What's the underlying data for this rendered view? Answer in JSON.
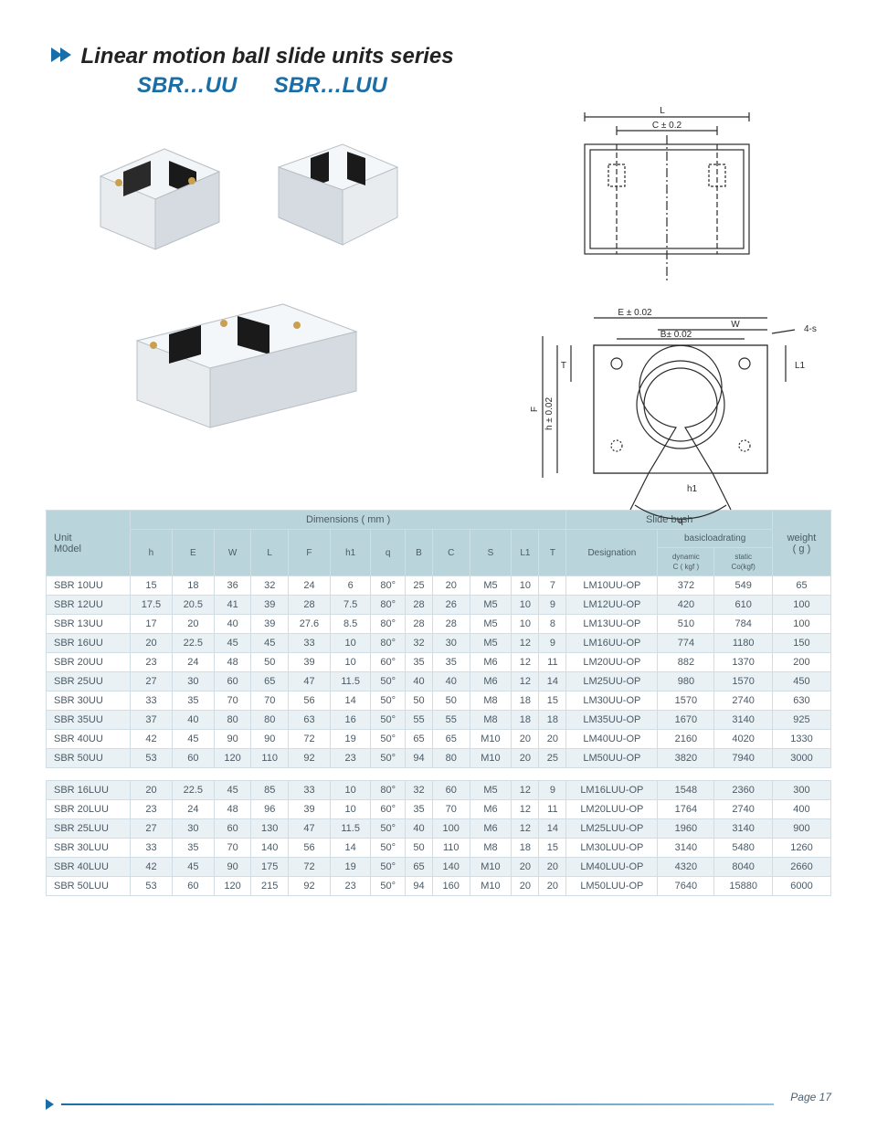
{
  "header": {
    "title": "Linear motion ball slide units series",
    "sub_a": "SBR…UU",
    "sub_b": "SBR…LUU"
  },
  "diagram_labels": {
    "top_L": "L",
    "top_C": "C ± 0.2",
    "E": "E ± 0.02",
    "W": "W",
    "B": "B± 0.02",
    "s4": "4-s",
    "T": "T",
    "L1": "L1",
    "h": "h ± 0.02",
    "F": "F",
    "h1": "h1",
    "q": "q"
  },
  "table": {
    "header_group": {
      "model": "Unit\nM0del",
      "dims": "Dimensions ( mm )",
      "slide": "Slide bush",
      "weight": "weight\n( g )"
    },
    "columns": [
      "h",
      "E",
      "W",
      "L",
      "F",
      "h1",
      "q",
      "B",
      "C",
      "S",
      "L1",
      "T"
    ],
    "slide_cols": {
      "designation": "Designation",
      "basic": "basicloadrating",
      "dyn": "dynamic\nC ( kgf )",
      "stat": "static\nCo(kgf)"
    },
    "colors": {
      "header_bg": "#b9d4da",
      "row_even_bg": "#e9f1f4",
      "row_odd_bg": "#ffffff",
      "border": "#d0dde4",
      "text": "#4a5a66"
    },
    "rows_a": [
      {
        "m": "SBR 10UU",
        "v": [
          "15",
          "18",
          "36",
          "32",
          "24",
          "6",
          "80°",
          "25",
          "20",
          "M5",
          "10",
          "7"
        ],
        "d": "LM10UU-OP",
        "dy": "372",
        "st": "549",
        "w": "65"
      },
      {
        "m": "SBR 12UU",
        "v": [
          "17.5",
          "20.5",
          "41",
          "39",
          "28",
          "7.5",
          "80°",
          "28",
          "26",
          "M5",
          "10",
          "9"
        ],
        "d": "LM12UU-OP",
        "dy": "420",
        "st": "610",
        "w": "100"
      },
      {
        "m": "SBR 13UU",
        "v": [
          "17",
          "20",
          "40",
          "39",
          "27.6",
          "8.5",
          "80°",
          "28",
          "28",
          "M5",
          "10",
          "8"
        ],
        "d": "LM13UU-OP",
        "dy": "510",
        "st": "784",
        "w": "100"
      },
      {
        "m": "SBR 16UU",
        "v": [
          "20",
          "22.5",
          "45",
          "45",
          "33",
          "10",
          "80°",
          "32",
          "30",
          "M5",
          "12",
          "9"
        ],
        "d": "LM16UU-OP",
        "dy": "774",
        "st": "1180",
        "w": "150"
      },
      {
        "m": "SBR 20UU",
        "v": [
          "23",
          "24",
          "48",
          "50",
          "39",
          "10",
          "60°",
          "35",
          "35",
          "M6",
          "12",
          "11"
        ],
        "d": "LM20UU-OP",
        "dy": "882",
        "st": "1370",
        "w": "200"
      },
      {
        "m": "SBR 25UU",
        "v": [
          "27",
          "30",
          "60",
          "65",
          "47",
          "11.5",
          "50°",
          "40",
          "40",
          "M6",
          "12",
          "14"
        ],
        "d": "LM25UU-OP",
        "dy": "980",
        "st": "1570",
        "w": "450"
      },
      {
        "m": "SBR 30UU",
        "v": [
          "33",
          "35",
          "70",
          "70",
          "56",
          "14",
          "50°",
          "50",
          "50",
          "M8",
          "18",
          "15"
        ],
        "d": "LM30UU-OP",
        "dy": "1570",
        "st": "2740",
        "w": "630"
      },
      {
        "m": "SBR 35UU",
        "v": [
          "37",
          "40",
          "80",
          "80",
          "63",
          "16",
          "50°",
          "55",
          "55",
          "M8",
          "18",
          "18"
        ],
        "d": "LM35UU-OP",
        "dy": "1670",
        "st": "3140",
        "w": "925"
      },
      {
        "m": "SBR 40UU",
        "v": [
          "42",
          "45",
          "90",
          "90",
          "72",
          "19",
          "50°",
          "65",
          "65",
          "M10",
          "20",
          "20"
        ],
        "d": "LM40UU-OP",
        "dy": "2160",
        "st": "4020",
        "w": "1330"
      },
      {
        "m": "SBR 50UU",
        "v": [
          "53",
          "60",
          "120",
          "110",
          "92",
          "23",
          "50°",
          "94",
          "80",
          "M10",
          "20",
          "25"
        ],
        "d": "LM50UU-OP",
        "dy": "3820",
        "st": "7940",
        "w": "3000"
      }
    ],
    "rows_b": [
      {
        "m": "SBR 16LUU",
        "v": [
          "20",
          "22.5",
          "45",
          "85",
          "33",
          "10",
          "80°",
          "32",
          "60",
          "M5",
          "12",
          "9"
        ],
        "d": "LM16LUU-OP",
        "dy": "1548",
        "st": "2360",
        "w": "300"
      },
      {
        "m": "SBR 20LUU",
        "v": [
          "23",
          "24",
          "48",
          "96",
          "39",
          "10",
          "60°",
          "35",
          "70",
          "M6",
          "12",
          "11"
        ],
        "d": "LM20LUU-OP",
        "dy": "1764",
        "st": "2740",
        "w": "400"
      },
      {
        "m": "SBR 25LUU",
        "v": [
          "27",
          "30",
          "60",
          "130",
          "47",
          "11.5",
          "50°",
          "40",
          "100",
          "M6",
          "12",
          "14"
        ],
        "d": "LM25LUU-OP",
        "dy": "1960",
        "st": "3140",
        "w": "900"
      },
      {
        "m": "SBR 30LUU",
        "v": [
          "33",
          "35",
          "70",
          "140",
          "56",
          "14",
          "50°",
          "50",
          "110",
          "M8",
          "18",
          "15"
        ],
        "d": "LM30LUU-OP",
        "dy": "3140",
        "st": "5480",
        "w": "1260"
      },
      {
        "m": "SBR 40LUU",
        "v": [
          "42",
          "45",
          "90",
          "175",
          "72",
          "19",
          "50°",
          "65",
          "140",
          "M10",
          "20",
          "20"
        ],
        "d": "LM40LUU-OP",
        "dy": "4320",
        "st": "8040",
        "w": "2660"
      },
      {
        "m": "SBR 50LUU",
        "v": [
          "53",
          "60",
          "120",
          "215",
          "92",
          "23",
          "50°",
          "94",
          "160",
          "M10",
          "20",
          "20"
        ],
        "d": "LM50LUU-OP",
        "dy": "7640",
        "st": "15880",
        "w": "6000"
      }
    ]
  },
  "footer": {
    "page": "Page 17"
  }
}
